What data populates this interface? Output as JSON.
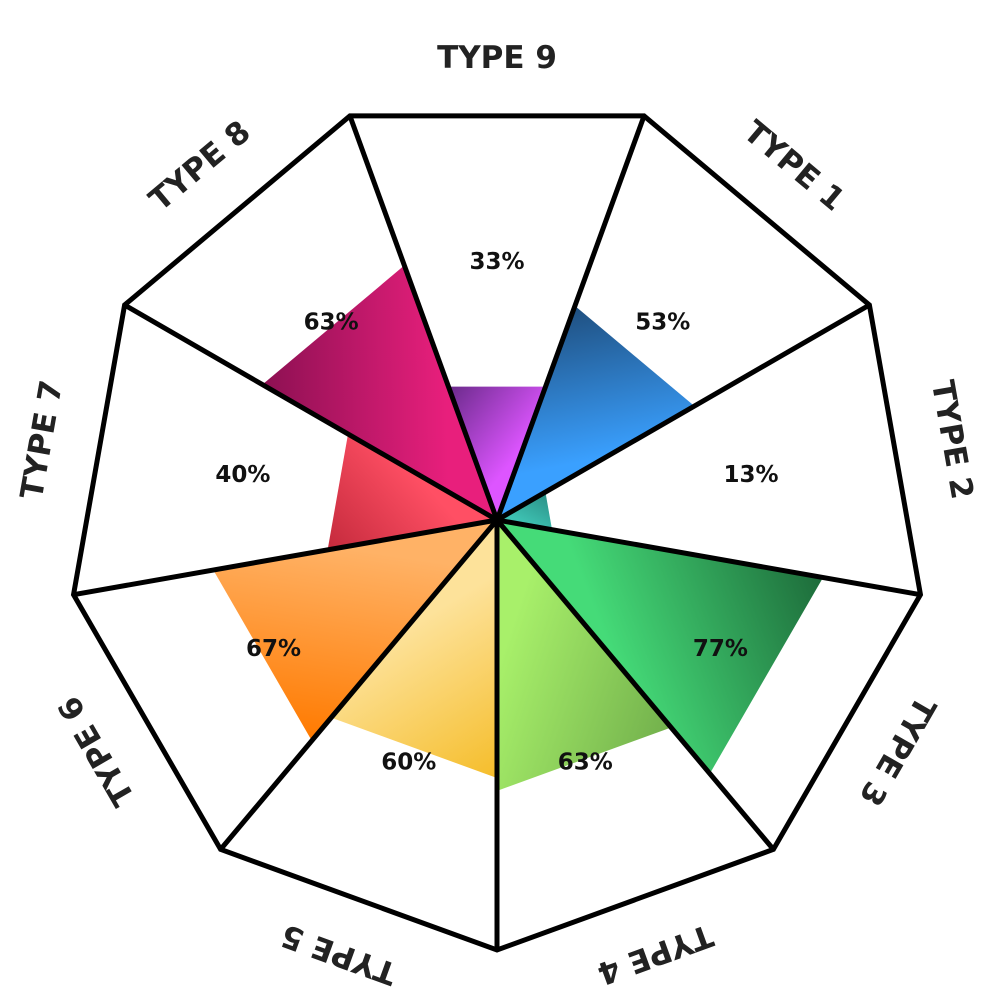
{
  "chart_data": {
    "type": "radial-bar",
    "scale_max": 100,
    "categories": [
      "TYPE 1",
      "TYPE 2",
      "TYPE 3",
      "TYPE 4",
      "TYPE 5",
      "TYPE 6",
      "TYPE 7",
      "TYPE 8",
      "TYPE 9"
    ],
    "values": [
      53,
      13,
      77,
      63,
      60,
      67,
      40,
      63,
      33
    ],
    "value_labels": [
      "53%",
      "13%",
      "77%",
      "63%",
      "60%",
      "67%",
      "40%",
      "63%",
      "33%"
    ],
    "colors": [
      [
        "#1f4f7f",
        "#3aa0ff"
      ],
      [
        "#2a8f86",
        "#3ec3b3"
      ],
      [
        "#1d6b3a",
        "#45db78"
      ],
      [
        "#72b04c",
        "#a8f06a"
      ],
      [
        "#f5bd2a",
        "#fde29a"
      ],
      [
        "#ff7a00",
        "#ffb266"
      ],
      [
        "#c42a3c",
        "#ff4f64"
      ],
      [
        "#8c1052",
        "#e81f7c"
      ],
      [
        "#6a2a8a",
        "#dd55ff"
      ]
    ]
  }
}
